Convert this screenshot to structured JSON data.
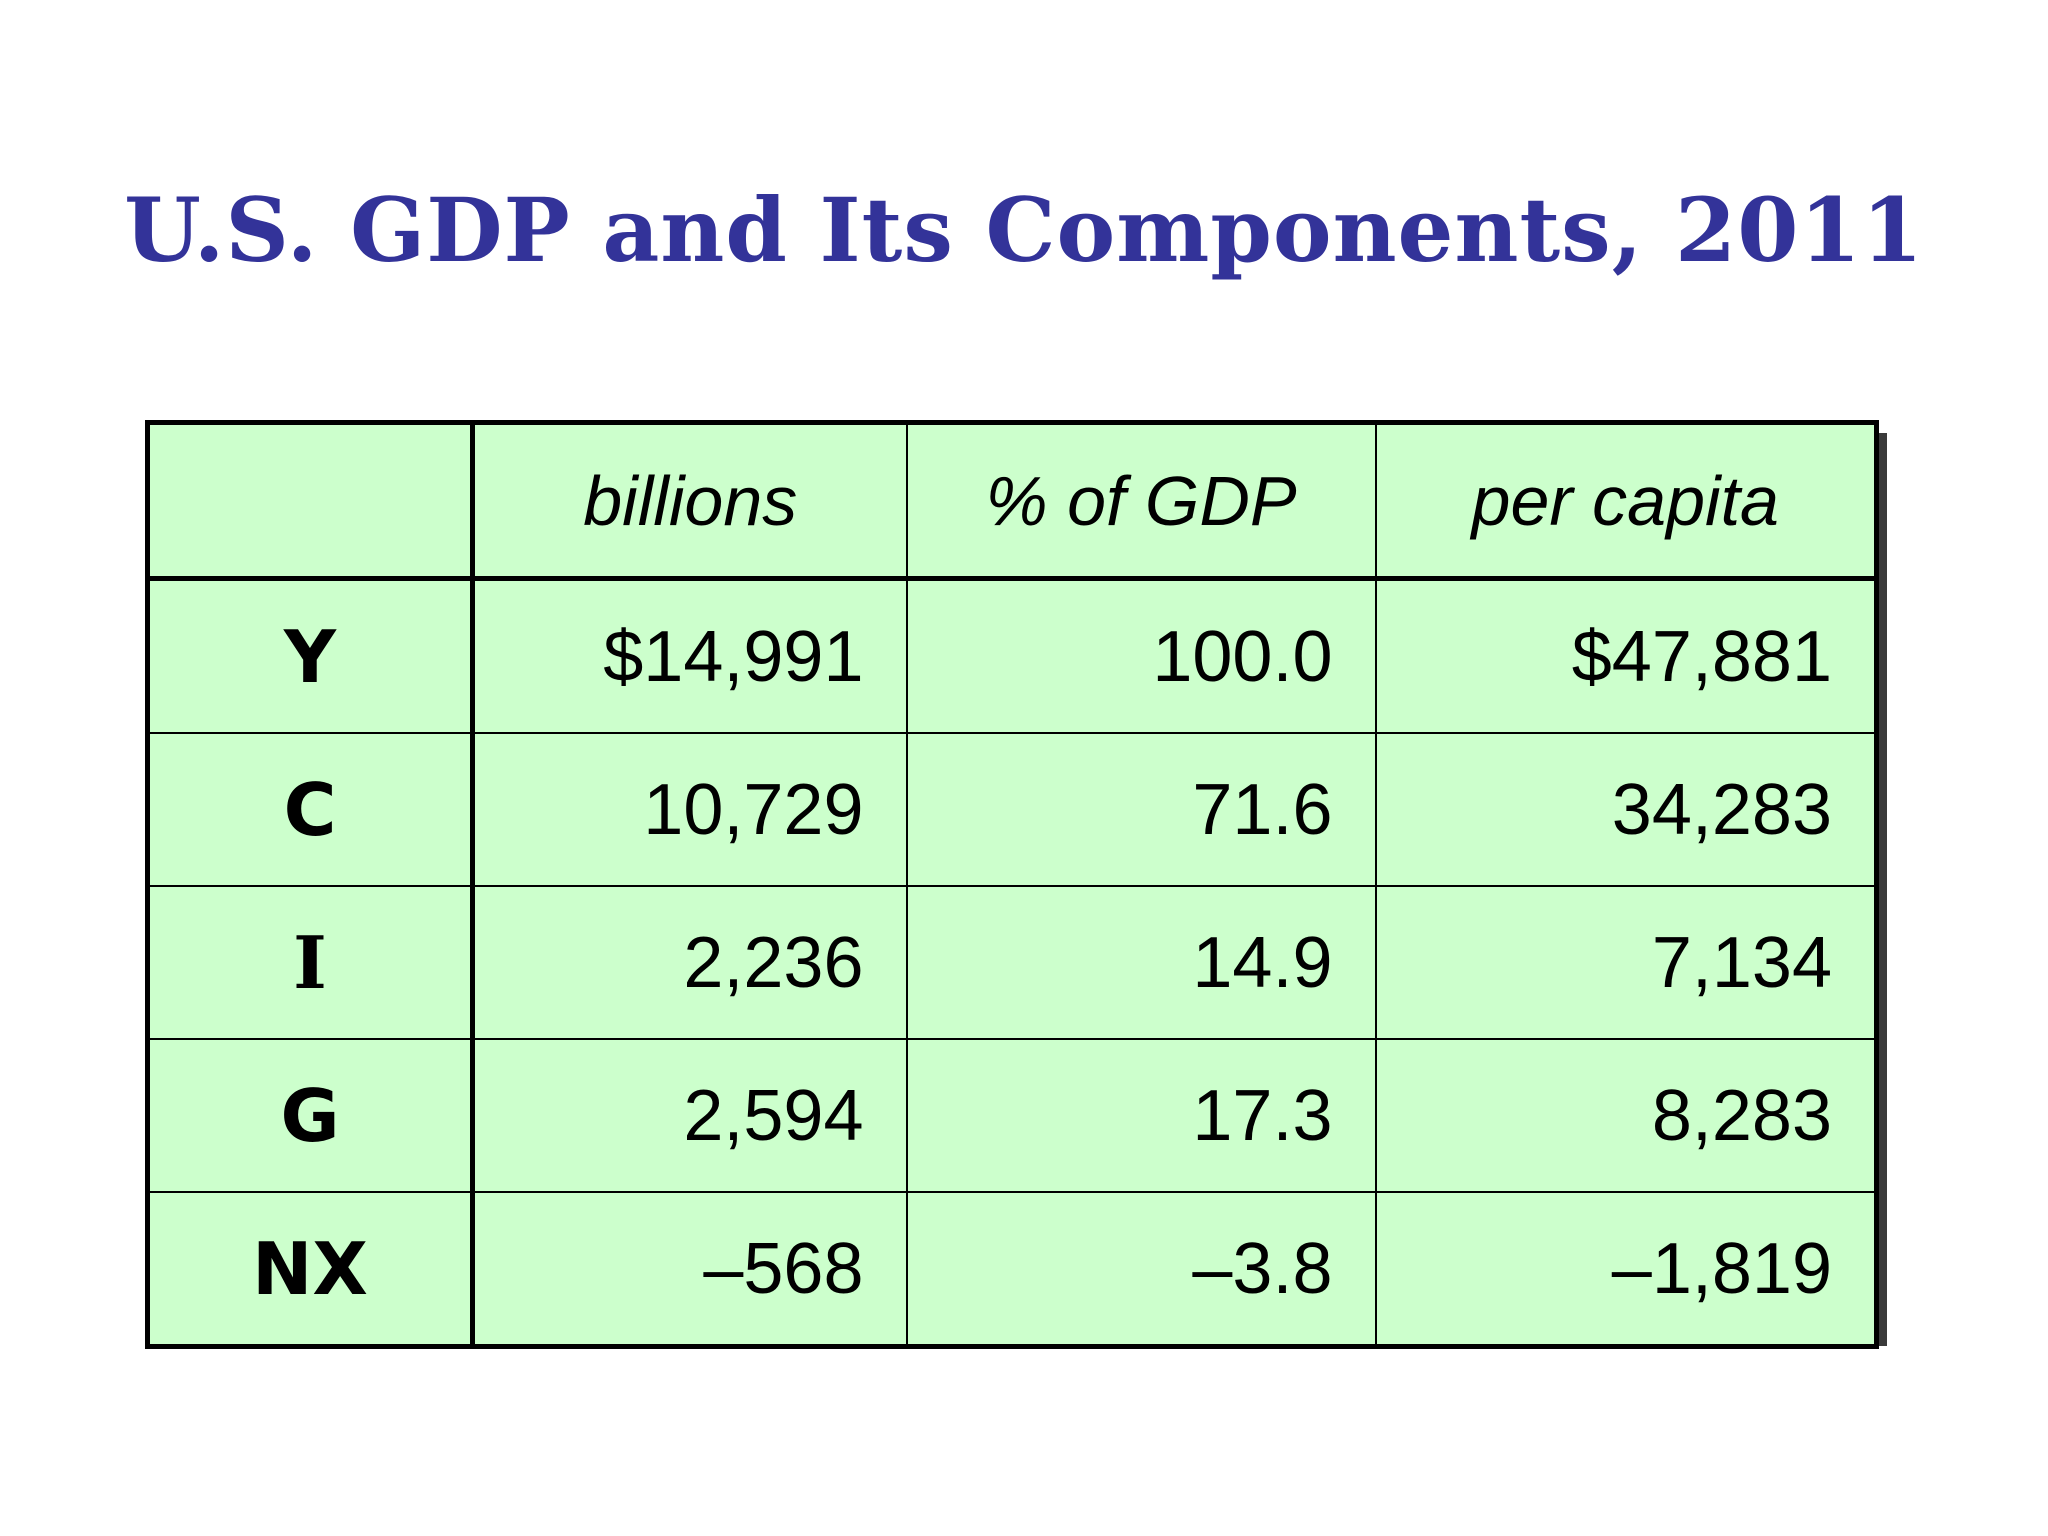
{
  "title": "U.S. GDP and Its Components, 2011",
  "chart_data": {
    "type": "table",
    "title": "U.S. GDP and Its Components, 2011",
    "columns": [
      "",
      "billions",
      "% of GDP",
      "per capita"
    ],
    "rows": [
      {
        "label": "Y",
        "billions": "$14,991",
        "pct_gdp": "100.0",
        "per_capita": "$47,881"
      },
      {
        "label": "C",
        "billions": "10,729",
        "pct_gdp": "71.6",
        "per_capita": "34,283"
      },
      {
        "label": "I",
        "billions": "2,236",
        "pct_gdp": "14.9",
        "per_capita": "7,134"
      },
      {
        "label": "G",
        "billions": "2,594",
        "pct_gdp": "17.3",
        "per_capita": "8,283"
      },
      {
        "label": "NX",
        "billions": "–568",
        "pct_gdp": "–3.8",
        "per_capita": "–1,819"
      }
    ],
    "values": {
      "billions": [
        14991,
        10729,
        2236,
        2594,
        -568
      ],
      "pct_gdp": [
        100.0,
        71.6,
        14.9,
        17.3,
        -3.8
      ],
      "per_capita": [
        47881,
        34283,
        7134,
        8283,
        -1819
      ]
    }
  },
  "colors": {
    "title": "#333399",
    "table_fill": "#ccffcc",
    "border": "#000000"
  }
}
